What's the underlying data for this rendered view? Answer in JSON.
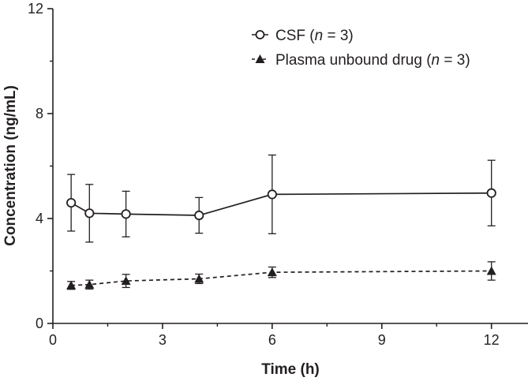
{
  "chart_data": {
    "type": "line",
    "title": "",
    "xlabel": "Time (h)",
    "ylabel": "Concentration (ng/mL)",
    "xlim": [
      0,
      13
    ],
    "ylim": [
      0,
      12
    ],
    "xticks": [
      0,
      3,
      6,
      9,
      12
    ],
    "yticks": [
      0,
      4,
      8,
      12
    ],
    "grid": false,
    "legend_position": "top-right",
    "series": [
      {
        "name": "CSF",
        "n_label": "n",
        "n_value": "3",
        "marker": "open-circle",
        "line_style": "solid",
        "x": [
          0.5,
          1,
          2,
          4,
          6,
          12
        ],
        "y": [
          4.6,
          4.2,
          4.17,
          4.12,
          4.92,
          4.97
        ],
        "err": [
          1.08,
          1.1,
          0.87,
          0.68,
          1.5,
          1.25
        ]
      },
      {
        "name": "Plasma unbound drug",
        "n_label": "n",
        "n_value": "3",
        "marker": "filled-triangle",
        "line_style": "dashed",
        "x": [
          0.5,
          1,
          2,
          4,
          6,
          12
        ],
        "y": [
          1.45,
          1.48,
          1.62,
          1.7,
          1.95,
          2.0
        ],
        "err": [
          0.15,
          0.17,
          0.25,
          0.18,
          0.2,
          0.35
        ]
      }
    ]
  }
}
